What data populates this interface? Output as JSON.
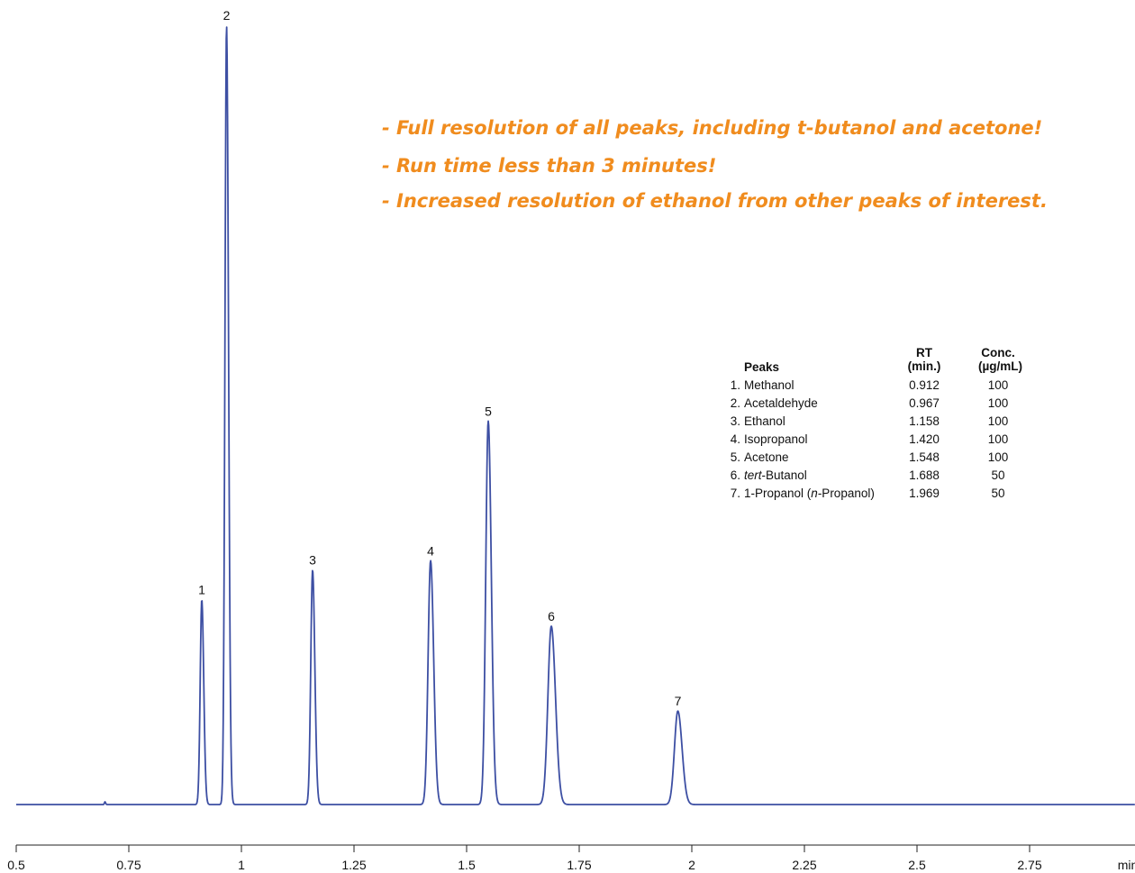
{
  "annotation_color": "#f08c1e",
  "trace_color": "#3d4fa3",
  "annotations": [
    "- Full resolution of all peaks, including t-butanol and acetone!",
    "- Run time less than 3 minutes!",
    "- Increased resolution of ethanol from other peaks of interest."
  ],
  "peak_table": {
    "header": {
      "peaks": "Peaks",
      "rt_line1": "RT",
      "rt_line2": "(min.)",
      "conc_line1": "Conc.",
      "conc_line2": "(µg/mL)"
    },
    "rows": [
      {
        "num": "1.",
        "name_parts": [
          {
            "t": "Methanol",
            "i": false
          }
        ],
        "rt": "0.912",
        "conc": "100"
      },
      {
        "num": "2.",
        "name_parts": [
          {
            "t": "Acetaldehyde",
            "i": false
          }
        ],
        "rt": "0.967",
        "conc": "100"
      },
      {
        "num": "3.",
        "name_parts": [
          {
            "t": "Ethanol",
            "i": false
          }
        ],
        "rt": "1.158",
        "conc": "100"
      },
      {
        "num": "4.",
        "name_parts": [
          {
            "t": "Isopropanol",
            "i": false
          }
        ],
        "rt": "1.420",
        "conc": "100"
      },
      {
        "num": "5.",
        "name_parts": [
          {
            "t": "Acetone",
            "i": false
          }
        ],
        "rt": "1.548",
        "conc": "100"
      },
      {
        "num": "6.",
        "name_parts": [
          {
            "t": "tert",
            "i": true
          },
          {
            "t": "-Butanol",
            "i": false
          }
        ],
        "rt": "1.688",
        "conc": "50"
      },
      {
        "num": "7.",
        "name_parts": [
          {
            "t": "1-Propanol (",
            "i": false
          },
          {
            "t": "n",
            "i": true
          },
          {
            "t": "-Propanol)",
            "i": false
          }
        ],
        "rt": "1.969",
        "conc": "50"
      }
    ]
  },
  "chart_data": {
    "type": "line",
    "title": "",
    "xlabel": "",
    "ylabel": "",
    "x_unit_label": "min",
    "xlim": [
      0.5,
      3.0
    ],
    "x_ticks": [
      0.5,
      0.75,
      1.0,
      1.25,
      1.5,
      1.75,
      2.0,
      2.25,
      2.5,
      2.75
    ],
    "x_tick_labels": [
      "0.5",
      "0.75",
      "1",
      "1.25",
      "1.5",
      "1.75",
      "2",
      "2.25",
      "2.5",
      "2.75"
    ],
    "grid": false,
    "y_axis_shown": false,
    "ylim": [
      0,
      100
    ],
    "baseline": 0,
    "peaks": [
      {
        "label": "1",
        "x": 0.912,
        "height": 26.3,
        "width": 0.0035
      },
      {
        "label": "2",
        "x": 0.967,
        "height": 100,
        "width": 0.0035
      },
      {
        "label": "3",
        "x": 1.158,
        "height": 30.1,
        "width": 0.004
      },
      {
        "label": "4",
        "x": 1.42,
        "height": 31.3,
        "width": 0.0055
      },
      {
        "label": "5",
        "x": 1.548,
        "height": 49.2,
        "width": 0.0055
      },
      {
        "label": "6",
        "x": 1.688,
        "height": 22.9,
        "width": 0.0075
      },
      {
        "label": "7",
        "x": 1.969,
        "height": 12.0,
        "width": 0.0075
      }
    ],
    "minor_features": [
      {
        "x": 0.697,
        "height": 0.35,
        "width": 0.0012
      }
    ]
  }
}
